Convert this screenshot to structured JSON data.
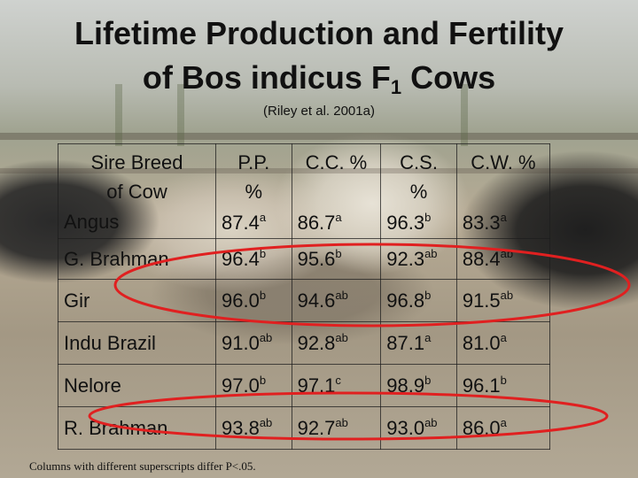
{
  "title": {
    "line1": "Lifetime Production and Fertility",
    "line2_main": "of Bos indicus F",
    "line2_sub": "1",
    "line2_end": " Cows"
  },
  "citation": "(Riley et al. 2001a)",
  "table": {
    "headers": {
      "breed_line1": "Sire Breed",
      "breed_line2": "of Cow",
      "pp_line1": "P.P.",
      "pp_line2": "%",
      "cc": "C.C. %",
      "cs_line1": "C.S.",
      "cs_line2": "%",
      "cw": "C.W. %"
    },
    "rows": [
      {
        "breed": "Angus",
        "pp": "87.4",
        "pp_sup": "a",
        "cc": "86.7",
        "cc_sup": "a",
        "cs": "96.3",
        "cs_sup": "b",
        "cw": "83.3",
        "cw_sup": "a"
      },
      {
        "breed": "G. Brahman",
        "pp": "96.4",
        "pp_sup": "b",
        "cc": "95.6",
        "cc_sup": "b",
        "cs": "92.3",
        "cs_sup": "ab",
        "cw": "88.4",
        "cw_sup": "ab"
      },
      {
        "breed": "Gir",
        "pp": "96.0",
        "pp_sup": "b",
        "cc": "94.6",
        "cc_sup": "ab",
        "cs": "96.8",
        "cs_sup": "b",
        "cw": "91.5",
        "cw_sup": "ab"
      },
      {
        "breed": "Indu Brazil",
        "pp": "91.0",
        "pp_sup": "ab",
        "cc": "92.8",
        "cc_sup": "ab",
        "cs": "87.1",
        "cs_sup": "a",
        "cw": "81.0",
        "cw_sup": "a"
      },
      {
        "breed": "Nelore",
        "pp": "97.0",
        "pp_sup": "b",
        "cc": "97.1",
        "cc_sup": "c",
        "cs": "98.9",
        "cs_sup": "b",
        "cw": "96.1",
        "cw_sup": "b"
      },
      {
        "breed": "R. Brahman",
        "pp": "93.8",
        "pp_sup": "ab",
        "cc": "92.7",
        "cc_sup": "ab",
        "cs": "93.0",
        "cs_sup": "ab",
        "cw": "86.0",
        "cw_sup": "a"
      }
    ]
  },
  "footnote": "Columns with different superscripts differ P<.05.",
  "colors": {
    "highlight_oval": "#e02020",
    "text": "#111111"
  }
}
